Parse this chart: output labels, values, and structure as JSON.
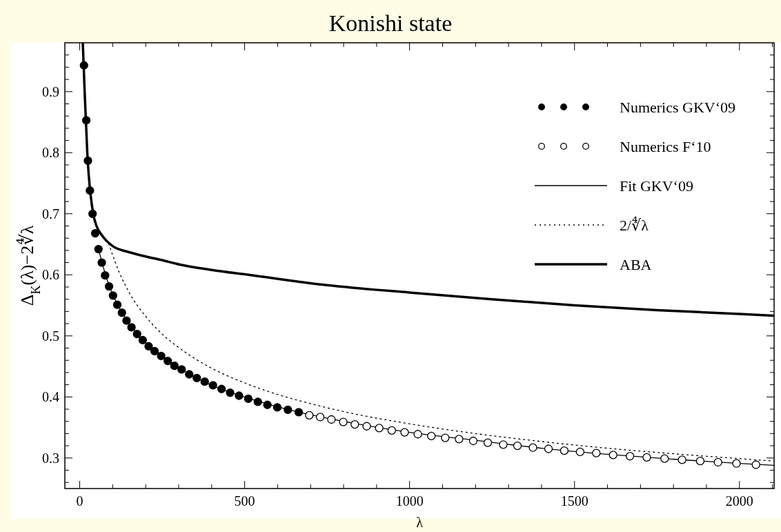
{
  "chart_data": {
    "type": "scatter",
    "title": "Konishi state",
    "xlabel": "λ",
    "ylabel": "Δ$_{K}$(λ)−2∜λ",
    "xlim": [
      -45,
      2105
    ],
    "ylim": [
      0.25,
      0.98
    ],
    "xticks": [
      0,
      {
        "value": 100,
        "label": null
      },
      {
        "value": 200,
        "label": null
      },
      {
        "value": 300,
        "label": null
      },
      {
        "value": 400,
        "label": null
      },
      500,
      {
        "value": 600,
        "label": null
      },
      {
        "value": 700,
        "label": null
      },
      {
        "value": 800,
        "label": null
      },
      {
        "value": 900,
        "label": null
      },
      1000,
      {
        "value": 1100,
        "label": null
      },
      {
        "value": 1200,
        "label": null
      },
      {
        "value": 1300,
        "label": null
      },
      {
        "value": 1400,
        "label": null
      },
      1500,
      {
        "value": 1600,
        "label": null
      },
      {
        "value": 1700,
        "label": null
      },
      {
        "value": 1800,
        "label": null
      },
      {
        "value": 1900,
        "label": null
      },
      2000,
      {
        "value": 2100,
        "label": null
      }
    ],
    "yticks": [
      {
        "value": 0.26,
        "label": null
      },
      {
        "value": 0.28,
        "label": null
      },
      0.3,
      {
        "value": 0.32,
        "label": null
      },
      {
        "value": 0.34,
        "label": null
      },
      {
        "value": 0.36,
        "label": null
      },
      {
        "value": 0.38,
        "label": null
      },
      0.4,
      {
        "value": 0.42,
        "label": null
      },
      {
        "value": 0.44,
        "label": null
      },
      {
        "value": 0.46,
        "label": null
      },
      {
        "value": 0.48,
        "label": null
      },
      0.5,
      {
        "value": 0.52,
        "label": null
      },
      {
        "value": 0.54,
        "label": null
      },
      {
        "value": 0.56,
        "label": null
      },
      {
        "value": 0.58,
        "label": null
      },
      0.6,
      {
        "value": 0.62,
        "label": null
      },
      {
        "value": 0.64,
        "label": null
      },
      {
        "value": 0.66,
        "label": null
      },
      {
        "value": 0.68,
        "label": null
      },
      0.7,
      {
        "value": 0.72,
        "label": null
      },
      {
        "value": 0.74,
        "label": null
      },
      {
        "value": 0.76,
        "label": null
      },
      {
        "value": 0.78,
        "label": null
      },
      0.8,
      {
        "value": 0.82,
        "label": null
      },
      {
        "value": 0.84,
        "label": null
      },
      {
        "value": 0.86,
        "label": null
      },
      {
        "value": 0.88,
        "label": null
      },
      0.9,
      {
        "value": 0.92,
        "label": null
      },
      {
        "value": 0.94,
        "label": null
      },
      {
        "value": 0.96,
        "label": null
      }
    ],
    "grid": false,
    "legend": "top right",
    "series": [
      {
        "name": "Numerics GKV‘09",
        "marker": "circle",
        "color": "#000000",
        "x": [
          13,
          20,
          25,
          31,
          39,
          47,
          57,
          67,
          77,
          89,
          101,
          114,
          128,
          142,
          157,
          174,
          191,
          209,
          227,
          247,
          267,
          287,
          309,
          332,
          355,
          379,
          404,
          430,
          456,
          483,
          511,
          540,
          569,
          599,
          631,
          664
        ],
        "values": [
          0.943,
          0.853,
          0.787,
          0.738,
          0.7,
          0.668,
          0.642,
          0.62,
          0.599,
          0.581,
          0.566,
          0.551,
          0.538,
          0.525,
          0.514,
          0.503,
          0.493,
          0.483,
          0.475,
          0.467,
          0.459,
          0.451,
          0.445,
          0.437,
          0.431,
          0.425,
          0.419,
          0.413,
          0.407,
          0.402,
          0.397,
          0.392,
          0.387,
          0.383,
          0.379,
          0.375
        ]
      },
      {
        "name": "Numerics F‘10",
        "marker": "circle",
        "color": "#ffffff",
        "x": [
          696,
          729,
          763,
          799,
          834,
          870,
          908,
          946,
          985,
          1025,
          1066,
          1108,
          1150,
          1193,
          1237,
          1284,
          1327,
          1374,
          1421,
          1469,
          1517,
          1566,
          1617,
          1668,
          1719,
          1773,
          1826,
          1881,
          1935,
          1991,
          2050
        ],
        "values": [
          0.37,
          0.367,
          0.363,
          0.359,
          0.355,
          0.352,
          0.349,
          0.345,
          0.342,
          0.339,
          0.336,
          0.333,
          0.331,
          0.328,
          0.325,
          0.322,
          0.32,
          0.317,
          0.315,
          0.312,
          0.31,
          0.308,
          0.305,
          0.303,
          0.301,
          0.299,
          0.297,
          0.295,
          0.293,
          0.291,
          0.289
        ]
      },
      {
        "name": "Fit GKV‘09",
        "type": "line",
        "marker": "none",
        "line_style": "solid",
        "color": "#000000",
        "x": [
          60,
          80,
          100,
          130,
          170,
          220,
          300,
          400,
          500,
          650,
          800,
          1000,
          1200,
          1400,
          1600,
          1800,
          2000,
          2105
        ],
        "values": [
          0.636,
          0.597,
          0.568,
          0.536,
          0.506,
          0.479,
          0.448,
          0.419,
          0.4,
          0.377,
          0.36,
          0.342,
          0.329,
          0.316,
          0.306,
          0.298,
          0.291,
          0.288
        ]
      },
      {
        "name": "2/∜λ",
        "type": "line",
        "marker": "none",
        "line_style": "dotted",
        "color": "#000000",
        "x": [
          88,
          100,
          120,
          150,
          200,
          250,
          300,
          400,
          500,
          600,
          700,
          800,
          1000,
          1200,
          1400,
          1600,
          1800,
          2000,
          2105
        ],
        "values": [
          0.651,
          0.632,
          0.604,
          0.571,
          0.532,
          0.503,
          0.481,
          0.447,
          0.423,
          0.404,
          0.389,
          0.376,
          0.356,
          0.34,
          0.327,
          0.316,
          0.307,
          0.299,
          0.295
        ]
      },
      {
        "name": "ABA",
        "type": "line",
        "marker": "none",
        "line_style": "solid",
        "color": "#000000",
        "x": [
          9.4,
          15,
          23,
          41,
          51,
          67,
          100,
          150,
          200,
          250,
          302,
          400,
          512,
          750,
          1000,
          1250,
          1500,
          1750,
          2000,
          2105
        ],
        "values": [
          0.98,
          0.9,
          0.8,
          0.7,
          0.68,
          0.665,
          0.647,
          0.637,
          0.63,
          0.624,
          0.617,
          0.608,
          0.6,
          0.583,
          0.571,
          0.56,
          0.55,
          0.542,
          0.536,
          0.533
        ]
      }
    ]
  }
}
